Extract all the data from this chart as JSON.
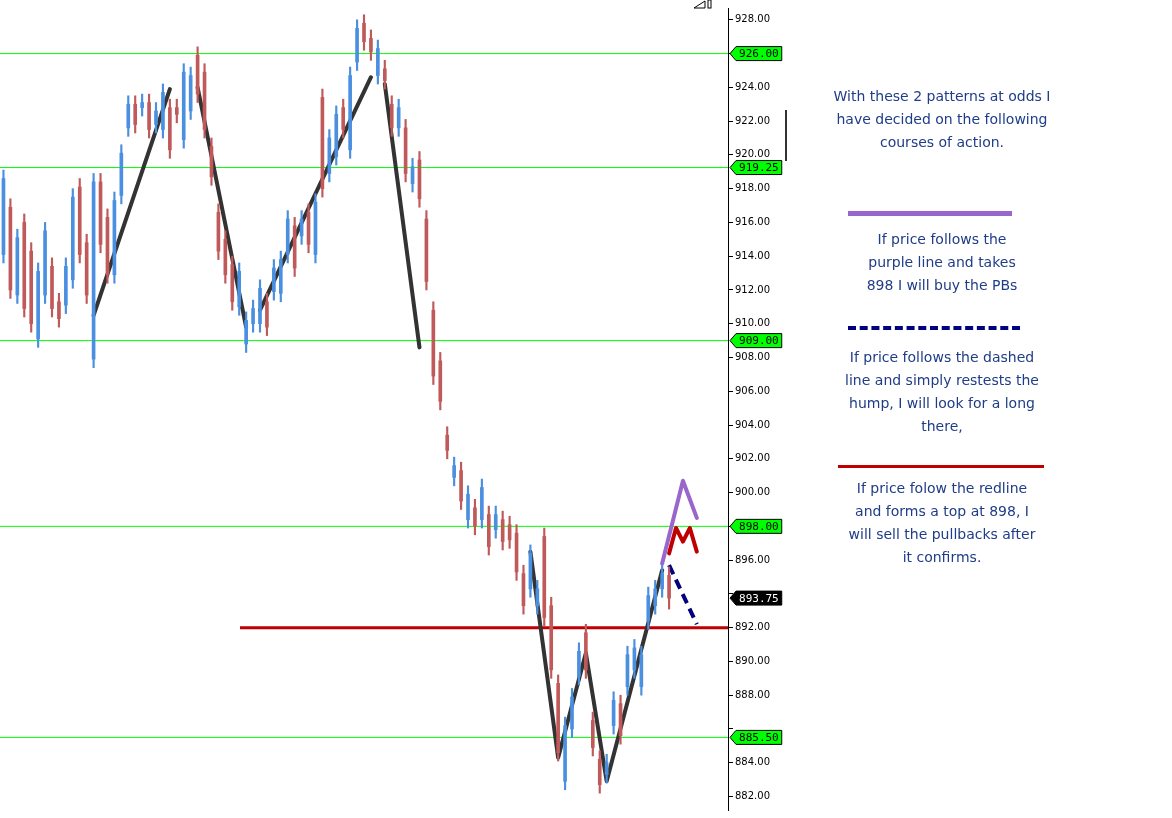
{
  "chart_data": {
    "type": "candlestick",
    "categories": [
      null,
      null,
      null,
      null,
      null,
      null,
      null,
      null,
      null,
      null,
      null,
      null,
      null,
      null,
      null,
      null,
      null,
      null,
      null,
      null,
      null,
      null,
      null,
      null,
      null,
      null,
      null,
      null,
      null,
      null,
      null,
      null,
      null,
      null,
      null,
      null,
      null,
      null,
      null,
      null,
      null,
      null,
      null,
      null,
      null,
      null,
      null,
      null,
      null,
      null,
      null,
      null,
      null,
      null,
      null,
      null,
      null,
      null,
      null,
      null,
      null,
      null,
      null,
      null,
      null,
      null,
      null,
      null,
      null,
      null,
      null,
      null,
      null,
      null,
      null,
      null,
      null,
      null,
      null,
      null,
      null,
      null,
      null,
      null,
      null,
      null,
      null,
      null,
      null,
      null,
      null,
      null,
      null,
      null,
      null,
      null,
      null,
      null,
      null,
      null,
      null,
      null,
      null,
      null,
      null
    ],
    "series": [
      {
        "type": "candlestick",
        "colors": [
          "#4a8fe0",
          "#c05a5a",
          "#4a8fe0",
          "#c05a5a",
          "#c05a5a",
          "#4a8fe0",
          "#4a8fe0",
          "#c05a5a",
          "#c05a5a",
          "#4a8fe0",
          "#4a8fe0",
          "#c05a5a",
          "#c05a5a",
          "#4a8fe0",
          "#c05a5a",
          "#c05a5a",
          "#4a8fe0",
          "#4a8fe0",
          "#4a8fe0",
          "#c05a5a",
          "#4a8fe0",
          "#c05a5a",
          "#4a8fe0",
          "#4a8fe0",
          "#c05a5a",
          "#c05a5a",
          "#4a8fe0",
          "#4a8fe0",
          "#c05a5a",
          "#c05a5a",
          "#c05a5a",
          "#c05a5a",
          "#c05a5a",
          "#c05a5a",
          "#4a8fe0",
          "#4a8fe0",
          "#4a8fe0",
          "#4a8fe0",
          "#c05a5a",
          "#4a8fe0",
          "#4a8fe0",
          "#4a8fe0",
          "#c05a5a",
          "#4a8fe0",
          "#c05a5a",
          "#4a8fe0",
          "#c05a5a",
          "#4a8fe0",
          "#4a8fe0",
          "#c05a5a",
          "#4a8fe0",
          "#4a8fe0",
          "#c05a5a",
          "#c05a5a",
          "#4a8fe0",
          "#c05a5a",
          "#c05a5a",
          "#4a8fe0",
          "#c05a5a",
          "#4a8fe0",
          "#c05a5a",
          "#c05a5a",
          "#c05a5a",
          "#c05a5a",
          "#c05a5a",
          "#4a8fe0",
          "#c05a5a",
          "#4a8fe0",
          "#c05a5a",
          "#4a8fe0",
          "#c05a5a",
          "#4a8fe0",
          "#c05a5a",
          "#c05a5a",
          "#c05a5a",
          "#c05a5a",
          "#4a8fe0",
          "#4a8fe0",
          "#c05a5a",
          "#c05a5a",
          "#c05a5a",
          "#4a8fe0",
          "#4a8fe0",
          "#4a8fe0",
          "#c05a5a",
          "#c05a5a",
          "#c05a5a",
          "#4a8fe0",
          "#4a8fe0",
          "#c05a5a",
          "#4a8fe0",
          "#4a8fe0",
          "#4a8fe0",
          "#4a8fe0",
          "#4a8fe0",
          "#4a8fe0",
          "#c05a5a",
          null,
          null,
          null,
          null,
          null,
          null,
          null,
          null
        ],
        "ohlc": [
          [
            914.1,
            919.1,
            913.6,
            918.6
          ],
          [
            916.9,
            917.4,
            911.5,
            912.0
          ],
          [
            911.7,
            915.6,
            911.2,
            915.1
          ],
          [
            916.0,
            916.5,
            910.4,
            910.9
          ],
          [
            914.3,
            914.8,
            909.5,
            910.0
          ],
          [
            909.1,
            913.6,
            908.6,
            913.1
          ],
          [
            911.7,
            916.0,
            911.2,
            915.5
          ],
          [
            913.4,
            913.9,
            910.4,
            910.9
          ],
          [
            911.3,
            911.8,
            909.8,
            910.3
          ],
          [
            911.1,
            913.9,
            910.6,
            913.4
          ],
          [
            912.6,
            918.0,
            912.1,
            917.5
          ],
          [
            918.1,
            918.6,
            913.6,
            914.1
          ],
          [
            914.8,
            915.3,
            911.2,
            911.7
          ],
          [
            907.9,
            918.9,
            907.4,
            918.4
          ],
          [
            918.4,
            918.9,
            914.2,
            914.7
          ],
          [
            916.3,
            916.8,
            912.4,
            912.9
          ],
          [
            912.9,
            917.8,
            912.4,
            917.3
          ],
          [
            917.6,
            920.6,
            917.1,
            920.1
          ],
          [
            921.6,
            923.5,
            921.1,
            923.0
          ],
          [
            923.0,
            923.5,
            921.3,
            921.8
          ],
          [
            922.8,
            923.6,
            922.3,
            923.1
          ],
          [
            923.1,
            923.6,
            921.0,
            921.5
          ],
          [
            921.8,
            923.1,
            921.3,
            922.6
          ],
          [
            921.5,
            924.2,
            921.0,
            923.7
          ],
          [
            922.8,
            923.3,
            919.8,
            920.3
          ],
          [
            922.8,
            923.3,
            921.9,
            922.4
          ],
          [
            920.9,
            925.4,
            920.4,
            924.9
          ],
          [
            922.6,
            925.2,
            922.1,
            924.7
          ],
          [
            925.9,
            926.4,
            923.1,
            923.6
          ],
          [
            924.9,
            925.4,
            921.0,
            921.5
          ],
          [
            920.5,
            921.0,
            918.2,
            918.7
          ],
          [
            916.6,
            917.1,
            913.8,
            914.3
          ],
          [
            915.0,
            915.5,
            912.4,
            912.9
          ],
          [
            913.5,
            914.0,
            910.8,
            911.3
          ],
          [
            911.0,
            913.6,
            910.5,
            913.1
          ],
          [
            908.8,
            910.7,
            908.3,
            910.2
          ],
          [
            910.0,
            911.4,
            909.5,
            910.9
          ],
          [
            910.0,
            912.6,
            909.5,
            912.1
          ],
          [
            911.3,
            911.8,
            909.3,
            909.8
          ],
          [
            911.9,
            913.8,
            911.4,
            913.3
          ],
          [
            911.8,
            914.3,
            911.3,
            913.8
          ],
          [
            914.1,
            916.7,
            913.6,
            916.2
          ],
          [
            915.8,
            916.3,
            912.8,
            913.3
          ],
          [
            915.2,
            916.7,
            914.7,
            916.2
          ],
          [
            916.6,
            917.1,
            914.2,
            914.7
          ],
          [
            914.1,
            917.7,
            913.6,
            917.2
          ],
          [
            923.4,
            923.9,
            917.5,
            918.0
          ],
          [
            918.9,
            921.5,
            918.4,
            921.0
          ],
          [
            919.9,
            922.9,
            919.4,
            922.4
          ],
          [
            922.8,
            923.3,
            921.0,
            921.5
          ],
          [
            920.3,
            925.2,
            919.8,
            924.7
          ],
          [
            925.5,
            928.0,
            925.0,
            927.5
          ],
          [
            927.8,
            928.3,
            926.2,
            926.7
          ],
          [
            926.9,
            927.4,
            925.6,
            926.1
          ],
          [
            924.7,
            926.8,
            924.2,
            926.3
          ],
          [
            925.1,
            925.6,
            923.9,
            924.4
          ],
          [
            923.0,
            923.5,
            921.1,
            921.6
          ],
          [
            921.6,
            923.3,
            921.1,
            922.8
          ],
          [
            921.6,
            922.1,
            918.4,
            918.9
          ],
          [
            918.3,
            919.8,
            917.8,
            919.3
          ],
          [
            919.7,
            920.2,
            916.9,
            917.4
          ],
          [
            916.2,
            916.7,
            912.0,
            912.5
          ],
          [
            910.8,
            911.3,
            906.4,
            906.9
          ],
          [
            907.8,
            908.3,
            904.9,
            905.4
          ],
          [
            903.4,
            903.9,
            902.0,
            902.5
          ],
          [
            900.9,
            902.1,
            900.4,
            901.6
          ],
          [
            901.3,
            901.8,
            899.0,
            899.5
          ],
          [
            898.4,
            900.4,
            897.9,
            899.9
          ],
          [
            899.1,
            899.6,
            897.5,
            898.0
          ],
          [
            898.4,
            900.8,
            897.9,
            900.3
          ],
          [
            898.7,
            899.2,
            896.3,
            896.8
          ],
          [
            897.8,
            899.2,
            897.3,
            898.7
          ],
          [
            898.4,
            898.9,
            896.6,
            897.1
          ],
          [
            898.1,
            898.6,
            896.7,
            897.2
          ],
          [
            897.6,
            898.1,
            894.8,
            895.3
          ],
          [
            895.2,
            895.7,
            892.8,
            893.3
          ],
          [
            894.3,
            896.9,
            893.8,
            896.4
          ],
          [
            893.3,
            894.8,
            892.8,
            894.3
          ],
          [
            897.4,
            897.9,
            892.1,
            892.6
          ],
          [
            893.3,
            893.8,
            889.0,
            889.5
          ],
          [
            888.7,
            889.2,
            884.1,
            884.6
          ],
          [
            882.9,
            886.7,
            882.4,
            886.2
          ],
          [
            886.0,
            888.4,
            885.5,
            887.9
          ],
          [
            889.1,
            891.1,
            888.6,
            890.6
          ],
          [
            891.7,
            892.2,
            889.0,
            889.5
          ],
          [
            886.5,
            887.0,
            884.4,
            884.9
          ],
          [
            884.2,
            884.7,
            882.2,
            882.7
          ],
          [
            883.3,
            884.5,
            882.8,
            884.0
          ],
          [
            886.2,
            888.2,
            885.7,
            887.7
          ],
          [
            887.5,
            888.0,
            885.1,
            885.6
          ],
          [
            888.5,
            890.9,
            888.0,
            890.4
          ],
          [
            889.5,
            891.3,
            889.0,
            890.8
          ],
          [
            888.5,
            890.9,
            888.0,
            890.4
          ],
          [
            892.4,
            894.4,
            891.9,
            893.9
          ],
          [
            893.3,
            894.8,
            892.8,
            894.3
          ],
          [
            894.3,
            895.7,
            893.8,
            895.2
          ],
          [
            895.1,
            895.6,
            893.1,
            893.75
          ],
          null,
          null,
          null,
          null,
          null,
          null,
          null,
          null
        ]
      },
      {
        "type": "line",
        "color": "#333333",
        "values": [
          null,
          null,
          null,
          null,
          null,
          null,
          null,
          null,
          null,
          null,
          null,
          null,
          null,
          910.5,
          null,
          null,
          null,
          null,
          null,
          null,
          null,
          null,
          null,
          null,
          923.9,
          null,
          null,
          null,
          null,
          null,
          null,
          null,
          null,
          null,
          null,
          null,
          null,
          null,
          null,
          null,
          null,
          null,
          null,
          null,
          null,
          null,
          null,
          null,
          null,
          null,
          null,
          null,
          null,
          null,
          null,
          null,
          null,
          null,
          null,
          null,
          null,
          null,
          null,
          null,
          null,
          null,
          null,
          null,
          null,
          null,
          null,
          null,
          null,
          null,
          null,
          null,
          null,
          null,
          null,
          null,
          null,
          null,
          null,
          null,
          null,
          null,
          null,
          null,
          null,
          null,
          null,
          null,
          null,
          null,
          null,
          null,
          null,
          null,
          null,
          null,
          null,
          null,
          null,
          null,
          null
        ]
      },
      {
        "type": "line",
        "color": "#333333",
        "values": [
          null,
          null,
          null,
          null,
          null,
          null,
          null,
          null,
          null,
          null,
          null,
          null,
          null,
          null,
          null,
          null,
          null,
          null,
          null,
          null,
          null,
          null,
          null,
          null,
          null,
          null,
          null,
          null,
          924.0,
          null,
          null,
          null,
          null,
          null,
          null,
          909.8,
          null,
          null,
          null,
          null,
          null,
          null,
          null,
          null,
          null,
          null,
          null,
          null,
          null,
          null,
          null,
          null,
          null,
          null,
          null,
          null,
          null,
          null,
          null,
          null,
          null,
          null,
          null,
          null,
          null,
          null,
          null,
          null,
          null,
          null,
          null,
          null,
          null,
          null,
          null,
          null,
          null,
          null,
          null,
          null,
          null,
          null,
          null,
          null,
          null,
          null,
          null,
          null,
          null,
          null,
          null,
          null,
          null,
          null,
          null,
          null,
          null,
          null,
          null,
          null,
          null,
          null,
          null,
          null,
          null
        ]
      },
      {
        "type": "line",
        "color": "#333333",
        "values": [
          null,
          null,
          null,
          null,
          null,
          null,
          null,
          null,
          null,
          null,
          null,
          null,
          null,
          null,
          null,
          null,
          null,
          null,
          null,
          null,
          null,
          null,
          null,
          null,
          null,
          null,
          null,
          null,
          null,
          null,
          null,
          null,
          null,
          null,
          null,
          null,
          null,
          910.8,
          null,
          null,
          null,
          null,
          null,
          null,
          null,
          null,
          null,
          null,
          null,
          null,
          null,
          null,
          null,
          924.6,
          null,
          null,
          null,
          null,
          null,
          null,
          null,
          null,
          null,
          null,
          null,
          null,
          null,
          null,
          null,
          null,
          null,
          null,
          null,
          null,
          null,
          null,
          null,
          null,
          null,
          null,
          null,
          null,
          null,
          null,
          null,
          null,
          null,
          null,
          null,
          null,
          null,
          null,
          null,
          null,
          null,
          null,
          null,
          null,
          null,
          null,
          null,
          null,
          null,
          null,
          null
        ]
      },
      {
        "type": "line",
        "color": "#333333",
        "values": [
          null,
          null,
          null,
          null,
          null,
          null,
          null,
          null,
          null,
          null,
          null,
          null,
          null,
          null,
          null,
          null,
          null,
          null,
          null,
          null,
          null,
          null,
          null,
          null,
          null,
          null,
          null,
          null,
          null,
          null,
          null,
          null,
          null,
          null,
          null,
          null,
          null,
          null,
          null,
          null,
          null,
          null,
          null,
          null,
          null,
          null,
          null,
          null,
          null,
          null,
          null,
          null,
          null,
          null,
          null,
          924.2,
          null,
          null,
          null,
          null,
          908.6,
          null,
          null,
          null,
          null,
          null,
          null,
          null,
          null,
          null,
          null,
          null,
          null,
          null,
          null,
          null,
          null,
          null,
          null,
          null,
          null,
          null,
          null,
          null,
          null,
          null,
          null,
          null,
          null,
          null,
          null,
          null,
          null,
          null,
          null,
          null,
          null,
          null,
          null,
          null,
          null,
          null,
          null,
          null,
          null
        ]
      },
      {
        "type": "line",
        "color": "#333333",
        "values": [
          null,
          null,
          null,
          null,
          null,
          null,
          null,
          null,
          null,
          null,
          null,
          null,
          null,
          null,
          null,
          null,
          null,
          null,
          null,
          null,
          null,
          null,
          null,
          null,
          null,
          null,
          null,
          null,
          null,
          null,
          null,
          null,
          null,
          null,
          null,
          null,
          null,
          null,
          null,
          null,
          null,
          null,
          null,
          null,
          null,
          null,
          null,
          null,
          null,
          null,
          null,
          null,
          null,
          null,
          null,
          null,
          null,
          null,
          null,
          null,
          null,
          null,
          null,
          null,
          null,
          null,
          null,
          null,
          null,
          null,
          null,
          null,
          null,
          null,
          null,
          null,
          896.5,
          null,
          null,
          null,
          884.3,
          null,
          null,
          null,
          890.5,
          null,
          null,
          882.9,
          null,
          null,
          null,
          null,
          null,
          null,
          null,
          895.4,
          null,
          null,
          null,
          null,
          null,
          null,
          null,
          null,
          null
        ]
      },
      {
        "type": "line",
        "color": "#9966cc",
        "values": [
          null,
          null,
          null,
          null,
          null,
          null,
          null,
          null,
          null,
          null,
          null,
          null,
          null,
          null,
          null,
          null,
          null,
          null,
          null,
          null,
          null,
          null,
          null,
          null,
          null,
          null,
          null,
          null,
          null,
          null,
          null,
          null,
          null,
          null,
          null,
          null,
          null,
          null,
          null,
          null,
          null,
          null,
          null,
          null,
          null,
          null,
          null,
          null,
          null,
          null,
          null,
          null,
          null,
          null,
          null,
          null,
          null,
          null,
          null,
          null,
          null,
          null,
          null,
          null,
          null,
          null,
          null,
          null,
          null,
          null,
          null,
          null,
          null,
          null,
          null,
          null,
          null,
          null,
          null,
          null,
          null,
          null,
          null,
          null,
          null,
          null,
          null,
          null,
          null,
          null,
          null,
          null,
          null,
          null,
          null,
          895.8,
          null,
          null,
          900.7,
          null,
          898.5,
          null,
          null,
          null,
          null
        ]
      },
      {
        "type": "line",
        "color": "#c00000",
        "values": [
          null,
          null,
          null,
          null,
          null,
          null,
          null,
          null,
          null,
          null,
          null,
          null,
          null,
          null,
          null,
          null,
          null,
          null,
          null,
          null,
          null,
          null,
          null,
          null,
          null,
          null,
          null,
          null,
          null,
          null,
          null,
          null,
          null,
          null,
          null,
          null,
          null,
          null,
          null,
          null,
          null,
          null,
          null,
          null,
          null,
          null,
          null,
          null,
          null,
          null,
          null,
          null,
          null,
          null,
          null,
          null,
          null,
          null,
          null,
          null,
          null,
          null,
          null,
          null,
          null,
          null,
          null,
          null,
          null,
          null,
          null,
          null,
          null,
          null,
          null,
          null,
          null,
          null,
          null,
          null,
          null,
          null,
          null,
          null,
          null,
          null,
          null,
          null,
          null,
          null,
          null,
          null,
          null,
          null,
          null,
          null,
          896.4,
          897.9,
          897.1,
          897.9,
          896.5,
          null,
          null,
          null,
          null
        ]
      },
      {
        "type": "line",
        "color": "#000080",
        "line_style": "dashed",
        "values": [
          null,
          null,
          null,
          null,
          null,
          null,
          null,
          null,
          null,
          null,
          null,
          null,
          null,
          null,
          null,
          null,
          null,
          null,
          null,
          null,
          null,
          null,
          null,
          null,
          null,
          null,
          null,
          null,
          null,
          null,
          null,
          null,
          null,
          null,
          null,
          null,
          null,
          null,
          null,
          null,
          null,
          null,
          null,
          null,
          null,
          null,
          null,
          null,
          null,
          null,
          null,
          null,
          null,
          null,
          null,
          null,
          null,
          null,
          null,
          null,
          null,
          null,
          null,
          null,
          null,
          null,
          null,
          null,
          null,
          null,
          null,
          null,
          null,
          null,
          null,
          null,
          null,
          null,
          null,
          null,
          null,
          null,
          null,
          null,
          null,
          null,
          null,
          null,
          null,
          null,
          null,
          null,
          null,
          null,
          null,
          null,
          895.7,
          null,
          null,
          null,
          892.2,
          null,
          null,
          null,
          null
        ]
      }
    ],
    "ylim": [
      881.2,
      928.7
    ],
    "yticks": [
      {
        "value": 882,
        "label": "882.00"
      },
      {
        "value": 884,
        "label": "884.00"
      },
      {
        "value": 886,
        "label": null
      },
      {
        "value": 888,
        "label": "888.00"
      },
      {
        "value": 890,
        "label": "890.00"
      },
      {
        "value": 892,
        "label": "892.00"
      },
      {
        "value": 894,
        "label": null
      },
      {
        "value": 896,
        "label": "896.00"
      },
      {
        "value": 898,
        "label": null
      },
      {
        "value": 900,
        "label": "900.00"
      },
      {
        "value": 902,
        "label": "902.00"
      },
      {
        "value": 904,
        "label": "904.00"
      },
      {
        "value": 906,
        "label": "906.00"
      },
      {
        "value": 908,
        "label": "908.00"
      },
      {
        "value": 910,
        "label": "910.00"
      },
      {
        "value": 912,
        "label": "912.00"
      },
      {
        "value": 914,
        "label": "914.00"
      },
      {
        "value": 916,
        "label": "916.00"
      },
      {
        "value": 918,
        "label": "918.00"
      },
      {
        "value": 920,
        "label": "920.00"
      },
      {
        "value": 922,
        "label": "922.00"
      },
      {
        "value": 924,
        "label": "924.00"
      },
      {
        "value": 926,
        "label": null
      },
      {
        "value": 928,
        "label": "928.00"
      }
    ],
    "tick_labels": "y",
    "grid": false,
    "legend": false,
    "ref_lines": [
      {
        "axis": "y",
        "value": 926,
        "label": "926.00",
        "color": "#00ff00"
      },
      {
        "axis": "y",
        "value": 919.25,
        "label": "919.25",
        "color": "#00ff00"
      },
      {
        "axis": "y",
        "value": 909,
        "label": "909.00",
        "color": "#00ff00"
      },
      {
        "axis": "y",
        "value": 898,
        "label": "898.00",
        "color": "#00ff00"
      },
      {
        "axis": "y",
        "value": 885.5,
        "label": "885.50",
        "color": "#00ff00"
      },
      {
        "axis": "y",
        "value": 892,
        "color": "#c00000"
      }
    ],
    "annotations": [
      "893.75",
      "With these 2 patterns at odds I\nhave decided on the following\ncourses of action.",
      "If price follows the\npurple line and takes\n898 I will buy the PBs",
      "If price follows the dashed\nline and simply restests the\nhump, I will look for a long\nthere,",
      "If price folow the redline\nand forms a top at 898, I\nwill sell the pullbacks after\nit confirms."
    ]
  }
}
